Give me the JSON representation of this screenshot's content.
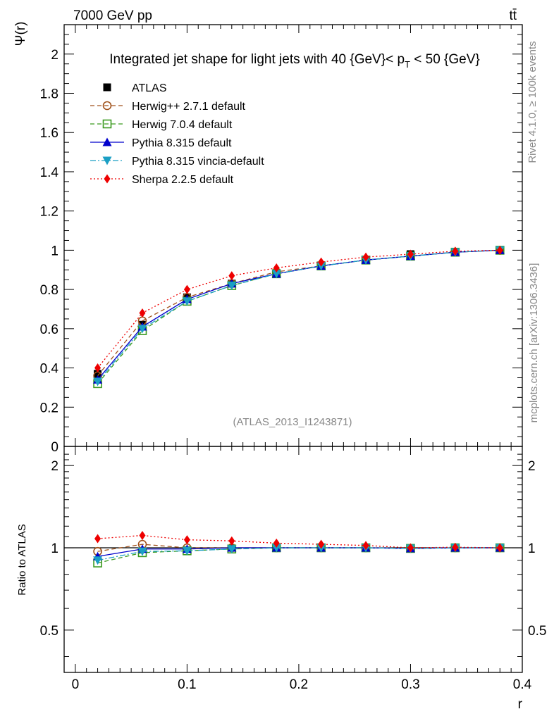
{
  "header": {
    "energy_label": "7000 GeV pp",
    "process_label": "tt̄"
  },
  "side_labels": {
    "rivet": "Rivet 4.1.0, ≥ 100k events",
    "mcplots": "mcplots.cern.ch [arXiv:1306.3436]"
  },
  "watermark": "(ATLAS_2013_I1243871)",
  "chart_data": [
    {
      "type": "line",
      "panel": "main",
      "title": "Integrated jet shape for light jets with 40 {GeV}< p_T < 50 {GeV}",
      "title_main": "Integrated jet shape for light jets with 40 {GeV}< p",
      "title_sub": "T",
      "title_tail": " < 50 {GeV}",
      "ylabel": "Ψ(r)",
      "xlabel": "r",
      "xlim": [
        -0.01,
        0.4
      ],
      "ylim": [
        0,
        2.15
      ],
      "yticks": [
        0,
        0.2,
        0.4,
        0.6,
        0.8,
        1,
        1.2,
        1.4,
        1.6,
        1.8,
        2
      ],
      "ytick_labels": [
        "0",
        "0.2",
        "0.4",
        "0.6",
        "0.8",
        "1",
        "1.2",
        "1.4",
        "1.6",
        "1.8",
        "2"
      ],
      "x": [
        0.02,
        0.06,
        0.1,
        0.14,
        0.18,
        0.22,
        0.26,
        0.3,
        0.34,
        0.38
      ],
      "series": [
        {
          "name": "ATLAS",
          "color": "#000000",
          "marker": "square-filled",
          "line": "none",
          "values": [
            0.37,
            0.62,
            0.76,
            0.83,
            0.88,
            0.92,
            0.95,
            0.98,
            0.99,
            1.0
          ]
        },
        {
          "name": "Herwig++ 2.7.1 default",
          "color": "#a0521c",
          "marker": "circle-open",
          "line": "dashed",
          "values": [
            0.36,
            0.64,
            0.76,
            0.83,
            0.89,
            0.92,
            0.95,
            0.97,
            0.99,
            1.0
          ]
        },
        {
          "name": "Herwig 7.0.4 default",
          "color": "#3b9a1f",
          "marker": "square-open",
          "line": "dashed",
          "values": [
            0.32,
            0.59,
            0.74,
            0.82,
            0.88,
            0.92,
            0.95,
            0.97,
            0.99,
            1.0
          ]
        },
        {
          "name": "Pythia 8.315 default",
          "color": "#0000cc",
          "marker": "triangle-up",
          "line": "solid",
          "values": [
            0.34,
            0.61,
            0.75,
            0.83,
            0.88,
            0.92,
            0.95,
            0.97,
            0.99,
            1.0
          ]
        },
        {
          "name": "Pythia 8.315 vincia-default",
          "color": "#1b9fc4",
          "marker": "triangle-down",
          "line": "dashdot",
          "values": [
            0.33,
            0.6,
            0.74,
            0.82,
            0.88,
            0.92,
            0.95,
            0.97,
            0.99,
            1.0
          ]
        },
        {
          "name": "Sherpa 2.2.5 default",
          "color": "#ee0000",
          "marker": "diamond",
          "line": "dotted",
          "values": [
            0.4,
            0.68,
            0.8,
            0.87,
            0.91,
            0.94,
            0.965,
            0.98,
            0.995,
            1.0
          ]
        }
      ]
    },
    {
      "type": "line",
      "panel": "ratio",
      "ylabel": "Ratio to ATLAS",
      "xlabel": "r",
      "xlim": [
        -0.01,
        0.4
      ],
      "ylim": [
        0.35,
        2.35
      ],
      "xticks": [
        0,
        0.1,
        0.2,
        0.3,
        0.4
      ],
      "xtick_labels": [
        "0",
        "0.1",
        "0.2",
        "0.3",
        "0.4"
      ],
      "yticks": [
        0.5,
        1,
        2
      ],
      "ytick_labels": [
        "0.5",
        "1",
        "2"
      ],
      "x": [
        0.02,
        0.06,
        0.1,
        0.14,
        0.18,
        0.22,
        0.26,
        0.3,
        0.34,
        0.38
      ],
      "series": [
        {
          "name": "Herwig++ 2.7.1 default",
          "color": "#a0521c",
          "marker": "circle-open",
          "line": "dashed",
          "values": [
            0.97,
            1.03,
            1.0,
            1.0,
            1.0,
            1.0,
            1.0,
            0.995,
            1.0,
            1.0
          ]
        },
        {
          "name": "Herwig 7.0.4 default",
          "color": "#3b9a1f",
          "marker": "square-open",
          "line": "dashed",
          "values": [
            0.88,
            0.96,
            0.975,
            0.99,
            1.0,
            1.0,
            1.0,
            0.995,
            1.0,
            1.0
          ]
        },
        {
          "name": "Pythia 8.315 default",
          "color": "#0000cc",
          "marker": "triangle-up",
          "line": "solid",
          "values": [
            0.93,
            0.99,
            0.99,
            1.0,
            1.0,
            1.0,
            1.0,
            0.995,
            1.0,
            1.0
          ]
        },
        {
          "name": "Pythia 8.315 vincia-default",
          "color": "#1b9fc4",
          "marker": "triangle-down",
          "line": "dashdot",
          "values": [
            0.9,
            0.97,
            0.975,
            0.99,
            1.0,
            1.0,
            1.0,
            0.995,
            1.0,
            1.0
          ]
        },
        {
          "name": "Sherpa 2.2.5 default",
          "color": "#ee0000",
          "marker": "diamond",
          "line": "dotted",
          "values": [
            1.08,
            1.11,
            1.07,
            1.06,
            1.04,
            1.03,
            1.02,
            1.0,
            1.005,
            1.0
          ]
        }
      ]
    }
  ]
}
